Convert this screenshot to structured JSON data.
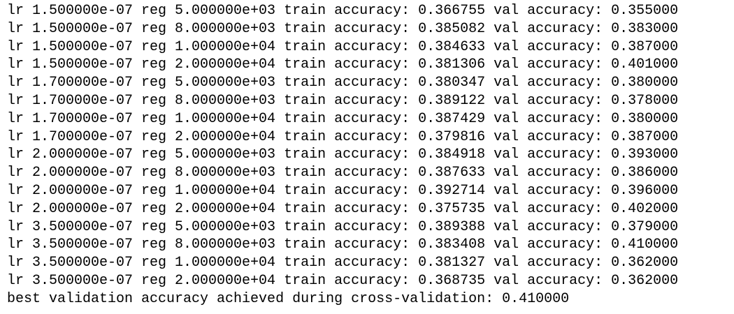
{
  "output": {
    "lines": [
      "lr 1.500000e-07 reg 5.000000e+03 train accuracy: 0.366755 val accuracy: 0.355000",
      "lr 1.500000e-07 reg 8.000000e+03 train accuracy: 0.385082 val accuracy: 0.383000",
      "lr 1.500000e-07 reg 1.000000e+04 train accuracy: 0.384633 val accuracy: 0.387000",
      "lr 1.500000e-07 reg 2.000000e+04 train accuracy: 0.381306 val accuracy: 0.401000",
      "lr 1.700000e-07 reg 5.000000e+03 train accuracy: 0.380347 val accuracy: 0.380000",
      "lr 1.700000e-07 reg 8.000000e+03 train accuracy: 0.389122 val accuracy: 0.378000",
      "lr 1.700000e-07 reg 1.000000e+04 train accuracy: 0.387429 val accuracy: 0.380000",
      "lr 1.700000e-07 reg 2.000000e+04 train accuracy: 0.379816 val accuracy: 0.387000",
      "lr 2.000000e-07 reg 5.000000e+03 train accuracy: 0.384918 val accuracy: 0.393000",
      "lr 2.000000e-07 reg 8.000000e+03 train accuracy: 0.387633 val accuracy: 0.386000",
      "lr 2.000000e-07 reg 1.000000e+04 train accuracy: 0.392714 val accuracy: 0.396000",
      "lr 2.000000e-07 reg 2.000000e+04 train accuracy: 0.375735 val accuracy: 0.402000",
      "lr 3.500000e-07 reg 5.000000e+03 train accuracy: 0.389388 val accuracy: 0.379000",
      "lr 3.500000e-07 reg 8.000000e+03 train accuracy: 0.383408 val accuracy: 0.410000",
      "lr 3.500000e-07 reg 1.000000e+04 train accuracy: 0.381327 val accuracy: 0.362000",
      "lr 3.500000e-07 reg 2.000000e+04 train accuracy: 0.368735 val accuracy: 0.362000"
    ],
    "summary": "best validation accuracy achieved during cross-validation: 0.410000"
  }
}
